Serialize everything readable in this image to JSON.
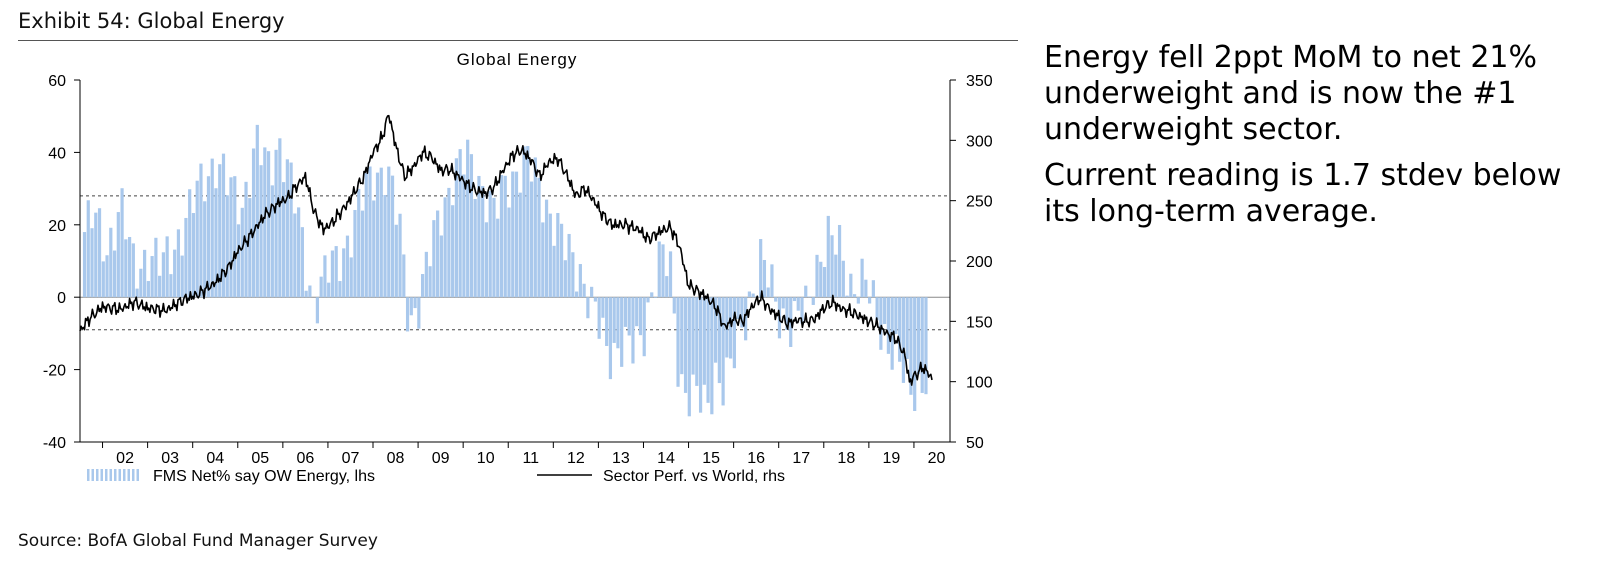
{
  "exhibit_title": "Exhibit 54: Global Energy",
  "commentary": [
    "Energy fell 2ppt MoM to net 21% underweight and is now the #1 underweight sector.",
    "Current reading is 1.7 stdev below its long-term average."
  ],
  "source": "Source: BofA Global Fund Manager Survey",
  "colors": {
    "bars": "#a9c8ec",
    "line": "#000000",
    "refline": "#444444",
    "zero": "#888888"
  },
  "chart_data": {
    "type": "bar+line",
    "title": "Global Energy",
    "legend": [
      "FMS Net% say OW Energy, lhs",
      "Sector Perf. vs World, rhs"
    ],
    "legend_placement": "bottom",
    "x_tick_labels": [
      "02",
      "03",
      "04",
      "05",
      "06",
      "07",
      "08",
      "09",
      "10",
      "11",
      "12",
      "13",
      "14",
      "15",
      "16",
      "17",
      "18",
      "19",
      "20"
    ],
    "x_range": [
      2001.5,
      2020.8
    ],
    "y_left": {
      "ticks": [
        60,
        40,
        20,
        0,
        -20,
        -40
      ],
      "range": [
        -40,
        60
      ]
    },
    "y_right": {
      "ticks": [
        350,
        300,
        250,
        200,
        150,
        100,
        50
      ],
      "range": [
        50,
        350
      ]
    },
    "reference_lines_lhs": [
      28,
      -9
    ],
    "series": [
      {
        "name": "FMS Net% say OW Energy, lhs",
        "axis": "left",
        "kind": "bar",
        "anchors": [
          [
            2001.6,
            18
          ],
          [
            2001.8,
            22
          ],
          [
            2002.1,
            14
          ],
          [
            2002.4,
            25
          ],
          [
            2002.7,
            8
          ],
          [
            2003.0,
            12
          ],
          [
            2003.3,
            8
          ],
          [
            2003.6,
            15
          ],
          [
            2003.9,
            22
          ],
          [
            2004.2,
            32
          ],
          [
            2004.5,
            38
          ],
          [
            2004.8,
            30
          ],
          [
            2005.1,
            26
          ],
          [
            2005.4,
            42
          ],
          [
            2005.7,
            35
          ],
          [
            2005.9,
            44
          ],
          [
            2006.1,
            36
          ],
          [
            2006.3,
            24
          ],
          [
            2006.5,
            10
          ],
          [
            2006.7,
            -2
          ],
          [
            2006.9,
            5
          ],
          [
            2007.2,
            10
          ],
          [
            2007.5,
            18
          ],
          [
            2007.8,
            28
          ],
          [
            2008.0,
            34
          ],
          [
            2008.3,
            36
          ],
          [
            2008.6,
            18
          ],
          [
            2008.8,
            -6
          ],
          [
            2009.0,
            -2
          ],
          [
            2009.2,
            8
          ],
          [
            2009.5,
            24
          ],
          [
            2009.8,
            34
          ],
          [
            2010.1,
            38
          ],
          [
            2010.4,
            32
          ],
          [
            2010.7,
            22
          ],
          [
            2010.9,
            30
          ],
          [
            2011.1,
            34
          ],
          [
            2011.4,
            38
          ],
          [
            2011.7,
            30
          ],
          [
            2012.0,
            22
          ],
          [
            2012.3,
            12
          ],
          [
            2012.6,
            8
          ],
          [
            2012.8,
            0
          ],
          [
            2013.0,
            -8
          ],
          [
            2013.2,
            -16
          ],
          [
            2013.5,
            -12
          ],
          [
            2013.8,
            -16
          ],
          [
            2014.0,
            -10
          ],
          [
            2014.2,
            4
          ],
          [
            2014.4,
            12
          ],
          [
            2014.6,
            6
          ],
          [
            2014.8,
            -22
          ],
          [
            2015.0,
            -26
          ],
          [
            2015.2,
            -28
          ],
          [
            2015.4,
            -32
          ],
          [
            2015.6,
            -20
          ],
          [
            2015.8,
            -24
          ],
          [
            2016.0,
            -18
          ],
          [
            2016.2,
            -8
          ],
          [
            2016.4,
            2
          ],
          [
            2016.6,
            10
          ],
          [
            2016.8,
            4
          ],
          [
            2017.0,
            -4
          ],
          [
            2017.3,
            -8
          ],
          [
            2017.6,
            -4
          ],
          [
            2017.9,
            12
          ],
          [
            2018.1,
            16
          ],
          [
            2018.4,
            12
          ],
          [
            2018.6,
            4
          ],
          [
            2018.9,
            4
          ],
          [
            2019.2,
            -6
          ],
          [
            2019.5,
            -14
          ],
          [
            2019.7,
            -20
          ],
          [
            2019.9,
            -26
          ],
          [
            2020.1,
            -24
          ],
          [
            2020.3,
            -21
          ]
        ]
      },
      {
        "name": "Sector Perf. vs World, rhs",
        "axis": "right",
        "kind": "line",
        "points": [
          [
            2001.5,
            142
          ],
          [
            2001.7,
            152
          ],
          [
            2002.0,
            162
          ],
          [
            2002.4,
            160
          ],
          [
            2002.7,
            166
          ],
          [
            2003.0,
            161
          ],
          [
            2003.4,
            159
          ],
          [
            2003.8,
            168
          ],
          [
            2004.1,
            172
          ],
          [
            2004.5,
            182
          ],
          [
            2004.8,
            195
          ],
          [
            2005.0,
            208
          ],
          [
            2005.3,
            222
          ],
          [
            2005.6,
            238
          ],
          [
            2005.9,
            248
          ],
          [
            2006.1,
            252
          ],
          [
            2006.3,
            262
          ],
          [
            2006.5,
            270
          ],
          [
            2006.7,
            240
          ],
          [
            2006.9,
            226
          ],
          [
            2007.1,
            232
          ],
          [
            2007.4,
            246
          ],
          [
            2007.6,
            258
          ],
          [
            2007.8,
            270
          ],
          [
            2008.0,
            290
          ],
          [
            2008.2,
            302
          ],
          [
            2008.35,
            322
          ],
          [
            2008.5,
            296
          ],
          [
            2008.7,
            270
          ],
          [
            2008.9,
            278
          ],
          [
            2009.1,
            290
          ],
          [
            2009.3,
            286
          ],
          [
            2009.5,
            275
          ],
          [
            2009.7,
            276
          ],
          [
            2009.9,
            270
          ],
          [
            2010.1,
            263
          ],
          [
            2010.3,
            258
          ],
          [
            2010.5,
            256
          ],
          [
            2010.7,
            262
          ],
          [
            2010.9,
            276
          ],
          [
            2011.1,
            288
          ],
          [
            2011.3,
            292
          ],
          [
            2011.5,
            284
          ],
          [
            2011.7,
            270
          ],
          [
            2011.9,
            282
          ],
          [
            2012.1,
            285
          ],
          [
            2012.3,
            271
          ],
          [
            2012.5,
            254
          ],
          [
            2012.7,
            260
          ],
          [
            2012.9,
            250
          ],
          [
            2013.1,
            238
          ],
          [
            2013.3,
            230
          ],
          [
            2013.6,
            230
          ],
          [
            2013.9,
            226
          ],
          [
            2014.1,
            218
          ],
          [
            2014.4,
            225
          ],
          [
            2014.6,
            228
          ],
          [
            2014.8,
            212
          ],
          [
            2015.0,
            180
          ],
          [
            2015.2,
            175
          ],
          [
            2015.4,
            170
          ],
          [
            2015.6,
            162
          ],
          [
            2015.8,
            145
          ],
          [
            2016.0,
            152
          ],
          [
            2016.2,
            150
          ],
          [
            2016.4,
            162
          ],
          [
            2016.6,
            170
          ],
          [
            2016.8,
            160
          ],
          [
            2017.0,
            154
          ],
          [
            2017.2,
            148
          ],
          [
            2017.4,
            151
          ],
          [
            2017.6,
            150
          ],
          [
            2017.8,
            152
          ],
          [
            2018.0,
            161
          ],
          [
            2018.2,
            166
          ],
          [
            2018.4,
            160
          ],
          [
            2018.6,
            158
          ],
          [
            2018.8,
            154
          ],
          [
            2019.0,
            150
          ],
          [
            2019.2,
            146
          ],
          [
            2019.4,
            140
          ],
          [
            2019.6,
            136
          ],
          [
            2019.8,
            122
          ],
          [
            2019.9,
            100
          ],
          [
            2020.05,
            106
          ],
          [
            2020.2,
            112
          ],
          [
            2020.3,
            108
          ],
          [
            2020.4,
            102
          ]
        ]
      }
    ]
  }
}
